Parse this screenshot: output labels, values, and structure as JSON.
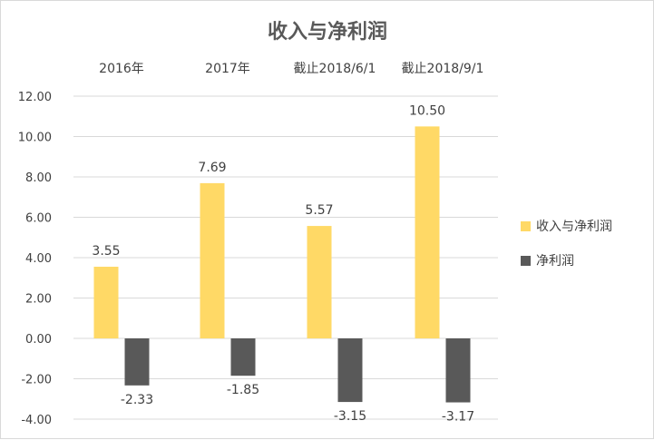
{
  "chart_data": {
    "type": "bar",
    "title": "收入与净利润",
    "categories": [
      "2016年",
      "2017年",
      "截止2018/6/1",
      "截止2018/9/1"
    ],
    "series": [
      {
        "name": "收入与净利润",
        "values": [
          3.55,
          7.69,
          5.57,
          10.5
        ],
        "labels": [
          "3.55",
          "7.69",
          "5.57",
          "10.50"
        ],
        "color": "#FFD966"
      },
      {
        "name": "净利润",
        "values": [
          -2.33,
          -1.85,
          -3.15,
          -3.17
        ],
        "labels": [
          "-2.33",
          "-1.85",
          "-3.15",
          "-3.17"
        ],
        "color": "#595959"
      }
    ],
    "ylim": [
      -4,
      12
    ],
    "yticks": [
      -4,
      -2,
      0,
      2,
      4,
      6,
      8,
      10,
      12
    ],
    "ytick_labels": [
      "-4.00",
      "-2.00",
      "0.00",
      "2.00",
      "4.00",
      "6.00",
      "8.00",
      "10.00",
      "12.00"
    ],
    "grid": true,
    "legend": "right",
    "category_labels_position": "top"
  }
}
